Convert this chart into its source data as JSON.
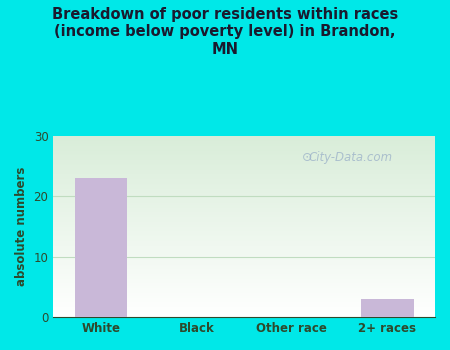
{
  "title": "Breakdown of poor residents within races\n(income below poverty level) in Brandon,\nMN",
  "categories": [
    "White",
    "Black",
    "Other race",
    "2+ races"
  ],
  "values": [
    23,
    0,
    0,
    3
  ],
  "bar_color": "#c9b8d8",
  "ylabel": "absolute numbers",
  "ylim": [
    0,
    30
  ],
  "yticks": [
    0,
    10,
    20,
    30
  ],
  "outer_bg": "#00e8e8",
  "plot_bg_top_left": "#d8edd8",
  "plot_bg_bottom_right": "#f8fff8",
  "grid_color": "#c0dcc0",
  "title_color": "#1a1a2e",
  "label_color": "#2d4a2d",
  "watermark": "City-Data.com",
  "bar_width": 0.55
}
